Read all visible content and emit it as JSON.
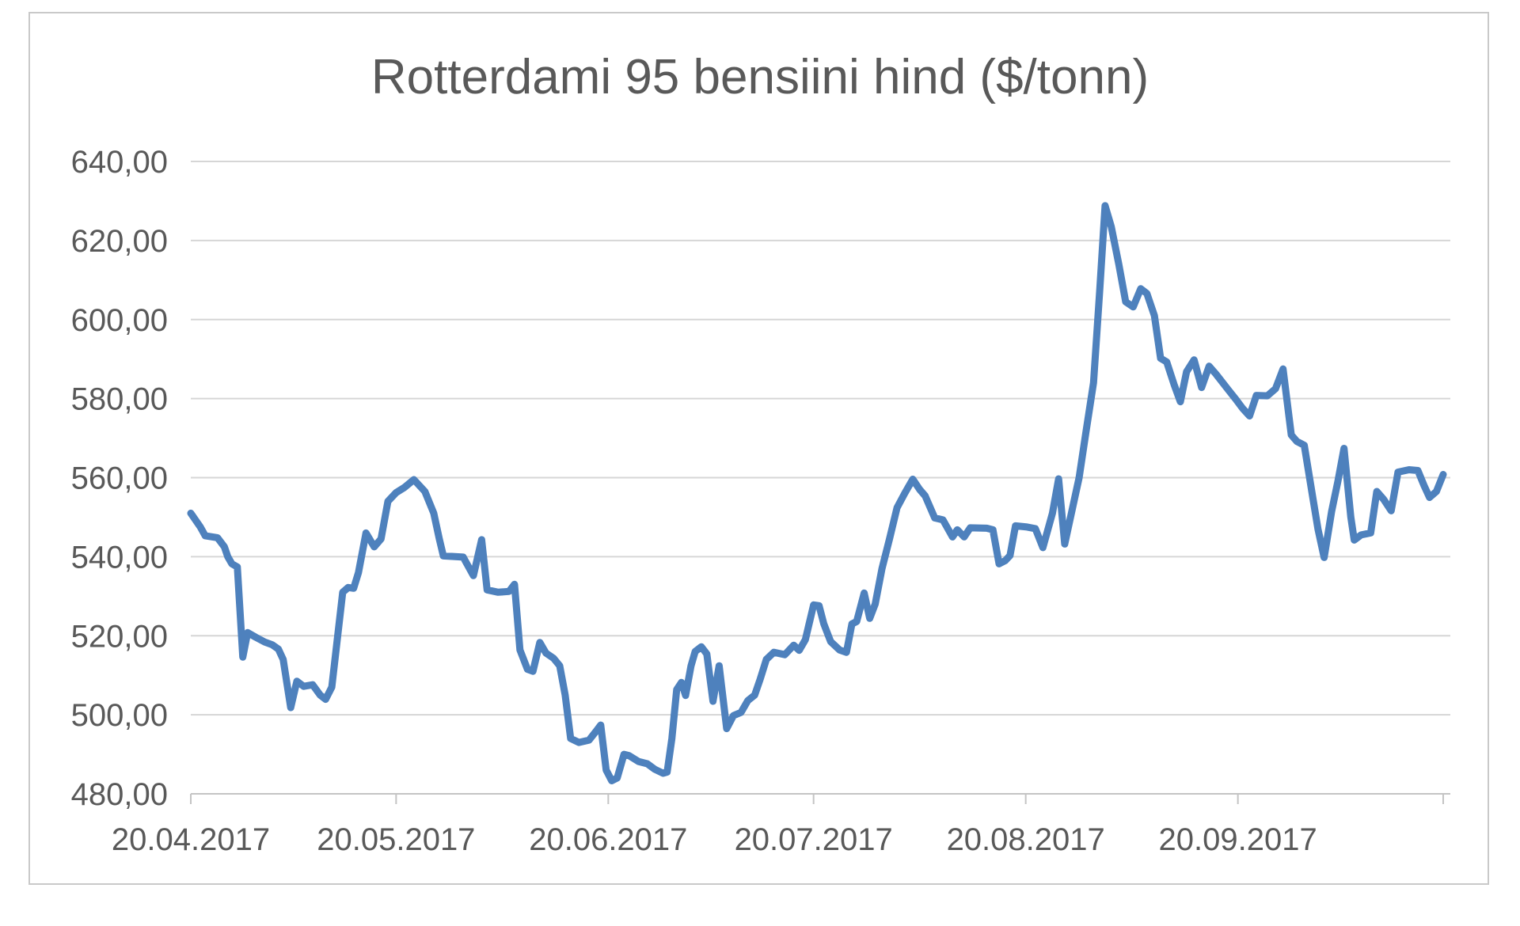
{
  "title": "Rotterdami 95 bensiini hind ($/tonn)",
  "colors": {
    "line": "#4E81BD",
    "gridline": "#D6D6D6",
    "axis_line": "#C4C4C4",
    "text": "#595959",
    "border": "#C9C9C9",
    "background": "#FFFFFF"
  },
  "chart_data": {
    "type": "line",
    "title": "Rotterdami 95 bensiini hind ($/tonn)",
    "xlabel": "",
    "ylabel": "",
    "grid": "horizontal",
    "legend": false,
    "x_axis": {
      "unit": "date",
      "xlim_days": [
        0,
        183
      ],
      "tick_days": [
        0,
        30,
        61,
        91,
        122,
        153
      ],
      "tick_labels": [
        "20.04.2017",
        "20.05.2017",
        "20.06.2017",
        "20.07.2017",
        "20.08.2017",
        "20.09.2017"
      ],
      "extra_unlabeled_tick_day": 183
    },
    "y_axis": {
      "ylim": [
        480,
        640
      ],
      "tick_values": [
        480,
        500,
        520,
        540,
        560,
        580,
        600,
        620,
        640
      ],
      "tick_labels": [
        "480,00",
        "500,00",
        "520,00",
        "540,00",
        "560,00",
        "580,00",
        "600,00",
        "620,00",
        "640,00"
      ]
    },
    "series": [
      {
        "name": "Rotterdami 95 bensiini hind ($/tonn)",
        "color": "#4E81BD",
        "points": [
          [
            0.0,
            551.0
          ],
          [
            1.4,
            547.5
          ],
          [
            2.1,
            545.3
          ],
          [
            3.9,
            544.8
          ],
          [
            4.9,
            542.5
          ],
          [
            5.4,
            540.0
          ],
          [
            6.0,
            538.2
          ],
          [
            6.8,
            537.4
          ],
          [
            7.6,
            514.6
          ],
          [
            8.3,
            520.8
          ],
          [
            9.5,
            519.6
          ],
          [
            10.8,
            518.4
          ],
          [
            11.9,
            517.7
          ],
          [
            12.8,
            516.6
          ],
          [
            13.5,
            514.0
          ],
          [
            14.6,
            501.8
          ],
          [
            15.5,
            508.5
          ],
          [
            16.5,
            507.2
          ],
          [
            17.8,
            507.6
          ],
          [
            18.9,
            505.0
          ],
          [
            19.7,
            503.9
          ],
          [
            20.6,
            507.0
          ],
          [
            21.4,
            519.0
          ],
          [
            22.2,
            531.0
          ],
          [
            23.0,
            532.2
          ],
          [
            23.8,
            532.0
          ],
          [
            24.5,
            536.0
          ],
          [
            25.6,
            546.0
          ],
          [
            26.8,
            542.5
          ],
          [
            27.8,
            544.5
          ],
          [
            28.8,
            554.0
          ],
          [
            30.0,
            556.2
          ],
          [
            31.2,
            557.5
          ],
          [
            32.6,
            559.5
          ],
          [
            34.2,
            556.5
          ],
          [
            35.5,
            551.0
          ],
          [
            36.3,
            544.6
          ],
          [
            36.9,
            540.2
          ],
          [
            39.8,
            539.9
          ],
          [
            41.3,
            535.2
          ],
          [
            42.5,
            544.3
          ],
          [
            43.3,
            531.6
          ],
          [
            44.9,
            531.0
          ],
          [
            46.5,
            531.2
          ],
          [
            47.3,
            533.0
          ],
          [
            48.1,
            516.4
          ],
          [
            49.2,
            511.5
          ],
          [
            50.0,
            511.0
          ],
          [
            51.0,
            518.3
          ],
          [
            51.9,
            515.6
          ],
          [
            53.0,
            514.3
          ],
          [
            53.9,
            512.4
          ],
          [
            54.7,
            505.0
          ],
          [
            55.5,
            494.0
          ],
          [
            56.7,
            493.0
          ],
          [
            58.2,
            493.6
          ],
          [
            59.2,
            495.8
          ],
          [
            59.9,
            497.4
          ],
          [
            60.7,
            486.0
          ],
          [
            61.5,
            483.3
          ],
          [
            62.3,
            484.0
          ],
          [
            63.3,
            490.0
          ],
          [
            64.0,
            489.7
          ],
          [
            65.4,
            488.2
          ],
          [
            66.7,
            487.6
          ],
          [
            67.8,
            486.2
          ],
          [
            69.0,
            485.2
          ],
          [
            69.6,
            485.5
          ],
          [
            70.3,
            494.0
          ],
          [
            71.0,
            506.4
          ],
          [
            71.7,
            508.2
          ],
          [
            72.3,
            504.9
          ],
          [
            73.1,
            512.4
          ],
          [
            73.7,
            516.0
          ],
          [
            74.6,
            517.2
          ],
          [
            75.4,
            515.4
          ],
          [
            76.3,
            503.4
          ],
          [
            77.2,
            512.4
          ],
          [
            78.3,
            496.5
          ],
          [
            79.3,
            499.8
          ],
          [
            80.4,
            500.6
          ],
          [
            81.4,
            503.6
          ],
          [
            82.4,
            505.0
          ],
          [
            83.2,
            509.0
          ],
          [
            84.1,
            514.0
          ],
          [
            85.2,
            515.8
          ],
          [
            86.8,
            515.2
          ],
          [
            88.1,
            517.6
          ],
          [
            88.9,
            516.3
          ],
          [
            89.8,
            519.0
          ],
          [
            91.0,
            527.8
          ],
          [
            91.8,
            527.6
          ],
          [
            92.5,
            523.0
          ],
          [
            93.5,
            518.5
          ],
          [
            94.8,
            516.4
          ],
          [
            95.8,
            515.8
          ],
          [
            96.6,
            523.0
          ],
          [
            97.3,
            523.6
          ],
          [
            98.4,
            530.8
          ],
          [
            99.2,
            524.4
          ],
          [
            100.0,
            528.0
          ],
          [
            101.0,
            537.0
          ],
          [
            102.1,
            544.5
          ],
          [
            103.2,
            552.4
          ],
          [
            104.3,
            556.0
          ],
          [
            105.5,
            559.6
          ],
          [
            106.5,
            557.0
          ],
          [
            107.3,
            555.4
          ],
          [
            108.7,
            549.8
          ],
          [
            109.9,
            549.3
          ],
          [
            111.3,
            545.0
          ],
          [
            112.0,
            546.8
          ],
          [
            113.0,
            545.0
          ],
          [
            113.9,
            547.3
          ],
          [
            116.3,
            547.2
          ],
          [
            117.2,
            546.8
          ],
          [
            118.1,
            538.2
          ],
          [
            119.0,
            539.0
          ],
          [
            119.7,
            540.3
          ],
          [
            120.5,
            547.8
          ],
          [
            122.2,
            547.5
          ],
          [
            123.4,
            547.1
          ],
          [
            124.5,
            542.3
          ],
          [
            125.9,
            551.0
          ],
          [
            126.8,
            559.7
          ],
          [
            127.7,
            543.2
          ],
          [
            128.6,
            550.4
          ],
          [
            129.8,
            560.0
          ],
          [
            130.8,
            571.5
          ],
          [
            131.9,
            584.0
          ],
          [
            132.8,
            607.0
          ],
          [
            133.6,
            628.8
          ],
          [
            134.5,
            623.5
          ],
          [
            135.6,
            614.0
          ],
          [
            136.6,
            604.5
          ],
          [
            137.7,
            603.2
          ],
          [
            138.8,
            607.8
          ],
          [
            139.7,
            606.6
          ],
          [
            140.8,
            601.0
          ],
          [
            141.7,
            590.2
          ],
          [
            142.6,
            589.3
          ],
          [
            143.7,
            583.4
          ],
          [
            144.6,
            579.2
          ],
          [
            145.5,
            586.8
          ],
          [
            146.6,
            589.8
          ],
          [
            147.7,
            582.8
          ],
          [
            148.8,
            588.2
          ],
          [
            149.8,
            586.2
          ],
          [
            151.6,
            582.2
          ],
          [
            152.7,
            579.8
          ],
          [
            153.7,
            577.5
          ],
          [
            154.7,
            575.6
          ],
          [
            155.7,
            580.8
          ],
          [
            157.3,
            580.7
          ],
          [
            158.5,
            582.5
          ],
          [
            159.6,
            587.5
          ],
          [
            160.8,
            570.8
          ],
          [
            161.6,
            569.2
          ],
          [
            162.7,
            568.2
          ],
          [
            163.8,
            556.5
          ],
          [
            164.7,
            547.0
          ],
          [
            165.6,
            539.8
          ],
          [
            166.7,
            551.5
          ],
          [
            167.6,
            559.0
          ],
          [
            168.5,
            567.4
          ],
          [
            169.5,
            550.0
          ],
          [
            170.0,
            544.2
          ],
          [
            171.0,
            545.5
          ],
          [
            172.4,
            546.0
          ],
          [
            173.3,
            556.5
          ],
          [
            174.3,
            554.5
          ],
          [
            175.4,
            551.6
          ],
          [
            176.4,
            561.4
          ],
          [
            178.0,
            562.0
          ],
          [
            179.3,
            561.8
          ],
          [
            180.2,
            558.0
          ],
          [
            181.0,
            555.0
          ],
          [
            182.0,
            556.5
          ],
          [
            183.0,
            560.8
          ]
        ]
      }
    ]
  }
}
